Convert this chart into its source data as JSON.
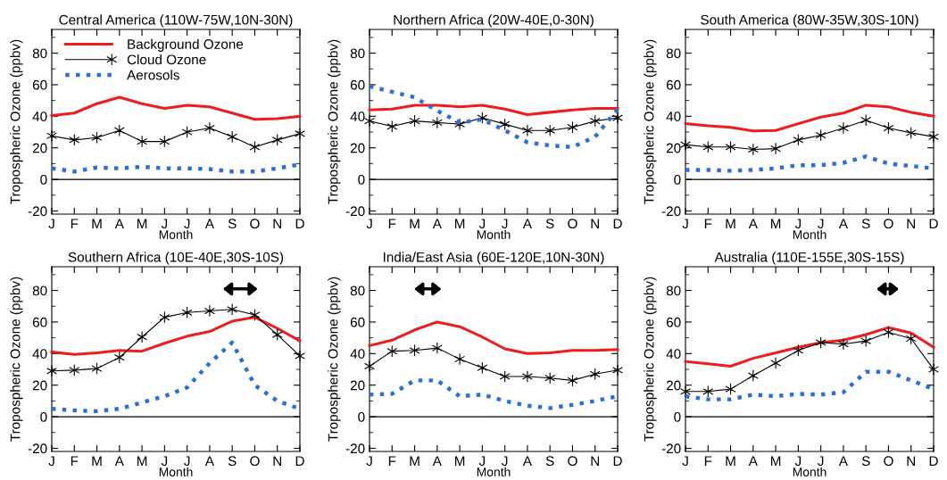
{
  "chart_data": [
    {
      "type": "line",
      "title": "Central America (110W-75W,10N-30N)",
      "xlabel": "Month",
      "ylabel": "Tropospheric Ozone (ppbv)",
      "categories": [
        "J",
        "F",
        "M",
        "A",
        "M",
        "J",
        "J",
        "A",
        "S",
        "O",
        "N",
        "D"
      ],
      "ylim": [
        -22,
        95
      ],
      "yticks": [
        -20,
        0,
        20,
        40,
        60,
        80
      ],
      "legend": "top left",
      "ref_lines": [
        {
          "axis": "y",
          "value": 0,
          "color": "#000000"
        }
      ],
      "series": [
        {
          "name": "Background Ozone",
          "color": "#ee1c1c",
          "line_style": "solid",
          "marker": "none",
          "values": [
            40.4,
            42,
            48,
            52,
            48,
            45,
            47,
            46,
            42,
            38,
            38.5,
            40
          ]
        },
        {
          "name": "Cloud Ozone",
          "color": "#000000",
          "line_style": "solid",
          "marker": "cross",
          "values": [
            27.6,
            25,
            26.5,
            31,
            24,
            24,
            30,
            32.5,
            27,
            20.5,
            25,
            29
          ]
        },
        {
          "name": "Aerosols",
          "color": "#2a6fdb",
          "line_style": "dotted",
          "marker": "none",
          "values": [
            7,
            5,
            7.5,
            7,
            8,
            7,
            7,
            6.5,
            5,
            5,
            7,
            9.5
          ]
        }
      ]
    },
    {
      "type": "line",
      "title": "Northern Africa (20W-40E,0-30N)",
      "xlabel": "Month",
      "ylabel": "Tropospheric Ozone (ppbv)",
      "categories": [
        "J",
        "F",
        "M",
        "A",
        "M",
        "J",
        "J",
        "A",
        "S",
        "O",
        "N",
        "D"
      ],
      "ylim": [
        -22,
        95
      ],
      "yticks": [
        -20,
        0,
        20,
        40,
        60,
        80
      ],
      "ref_lines": [
        {
          "axis": "y",
          "value": 0,
          "color": "#000000"
        }
      ],
      "series": [
        {
          "color": "#ee1c1c",
          "line_style": "solid",
          "marker": "none",
          "values": [
            44,
            44.5,
            47,
            47,
            46,
            47,
            44.5,
            41,
            42.5,
            44,
            45,
            45
          ]
        },
        {
          "color": "#000000",
          "line_style": "solid",
          "marker": "cross",
          "values": [
            37,
            33.5,
            37,
            36,
            35,
            39,
            35,
            31,
            31,
            33,
            37,
            39
          ]
        },
        {
          "color": "#2a6fdb",
          "line_style": "dotted",
          "marker": "none",
          "values": [
            59,
            55.5,
            52,
            43.5,
            36,
            38,
            31,
            23.5,
            21.5,
            20.5,
            27,
            44.5
          ]
        }
      ]
    },
    {
      "type": "line",
      "title": "South America (80W-35W,30S-10N)",
      "xlabel": "Month",
      "ylabel": "Tropospheric Ozone (ppbv)",
      "categories": [
        "J",
        "F",
        "M",
        "A",
        "M",
        "J",
        "J",
        "A",
        "S",
        "O",
        "N",
        "D"
      ],
      "ylim": [
        -22,
        95
      ],
      "yticks": [
        -20,
        0,
        20,
        40,
        60,
        80
      ],
      "ref_lines": [
        {
          "axis": "y",
          "value": 0,
          "color": "#000000"
        }
      ],
      "series": [
        {
          "color": "#ee1c1c",
          "line_style": "solid",
          "marker": "none",
          "values": [
            35.3,
            34,
            33,
            30.7,
            31,
            35.3,
            39.5,
            42,
            47,
            46,
            42.5,
            40
          ]
        },
        {
          "color": "#000000",
          "line_style": "solid",
          "marker": "cross",
          "values": [
            22,
            20.5,
            20.5,
            19,
            19.5,
            25,
            28,
            32.5,
            37.5,
            32.5,
            29.5,
            27
          ]
        },
        {
          "color": "#2a6fdb",
          "line_style": "dotted",
          "marker": "none",
          "values": [
            6,
            6,
            5.5,
            6,
            7,
            9,
            9,
            10.5,
            14.5,
            10,
            8.5,
            7
          ]
        }
      ]
    },
    {
      "type": "line",
      "title": "Southern Africa (10E-40E,30S-10S)",
      "xlabel": "Month",
      "ylabel": "Tropospheric Ozone (ppbv)",
      "categories": [
        "J",
        "F",
        "M",
        "A",
        "M",
        "J",
        "J",
        "A",
        "S",
        "O",
        "N",
        "D"
      ],
      "ylim": [
        -22,
        95
      ],
      "yticks": [
        -20,
        0,
        20,
        40,
        60,
        80
      ],
      "ref_lines": [
        {
          "axis": "y",
          "value": 0,
          "color": "#000000"
        }
      ],
      "series": [
        {
          "color": "#ee1c1c",
          "line_style": "solid",
          "marker": "none",
          "values": [
            41,
            39.5,
            40.5,
            42,
            41.5,
            46.5,
            51,
            54,
            60.5,
            63,
            56,
            48
          ]
        },
        {
          "color": "#000000",
          "line_style": "solid",
          "marker": "cross",
          "values": [
            29,
            29.5,
            30.5,
            37.5,
            50.5,
            63,
            66,
            67,
            68,
            64.5,
            52,
            38.5
          ]
        },
        {
          "color": "#2a6fdb",
          "line_style": "dotted",
          "marker": "none",
          "values": [
            5,
            4,
            3.5,
            5,
            9,
            13,
            18.5,
            34,
            47,
            20,
            10,
            5
          ]
        }
      ]
    },
    {
      "type": "line",
      "title": "India/East Asia (60E-120E,10N-30N)",
      "xlabel": "Month",
      "ylabel": "Tropospheric Ozone (ppbv)",
      "categories": [
        "J",
        "F",
        "M",
        "A",
        "M",
        "J",
        "J",
        "A",
        "S",
        "O",
        "N",
        "D"
      ],
      "ylim": [
        -22,
        95
      ],
      "yticks": [
        -20,
        0,
        20,
        40,
        60,
        80
      ],
      "ref_lines": [
        {
          "axis": "y",
          "value": 0,
          "color": "#000000"
        }
      ],
      "series": [
        {
          "color": "#ee1c1c",
          "line_style": "solid",
          "marker": "none",
          "values": [
            45,
            48.5,
            55,
            60,
            57,
            50.5,
            43,
            40,
            40.5,
            42,
            42,
            42.5
          ]
        },
        {
          "color": "#000000",
          "line_style": "solid",
          "marker": "cross",
          "values": [
            32,
            41.5,
            42,
            43.5,
            36.5,
            31,
            25.5,
            25.5,
            24.5,
            23,
            27,
            29.5
          ]
        },
        {
          "color": "#2a6fdb",
          "line_style": "dotted",
          "marker": "none",
          "values": [
            14,
            14.5,
            23,
            23,
            13,
            14,
            10,
            7,
            5.5,
            7.5,
            10,
            13
          ]
        }
      ]
    },
    {
      "type": "line",
      "title": "Australia (110E-155E,30S-15S)",
      "xlabel": "Month",
      "ylabel": "Tropospheric Ozone (ppbv)",
      "categories": [
        "J",
        "F",
        "M",
        "A",
        "M",
        "J",
        "J",
        "A",
        "S",
        "O",
        "N",
        "D"
      ],
      "ylim": [
        -22,
        95
      ],
      "yticks": [
        -20,
        0,
        20,
        40,
        60,
        80
      ],
      "ref_lines": [
        {
          "axis": "y",
          "value": 0,
          "color": "#000000"
        }
      ],
      "series": [
        {
          "color": "#ee1c1c",
          "line_style": "solid",
          "marker": "none",
          "values": [
            35,
            33.5,
            32,
            37,
            40.5,
            44,
            47,
            48.5,
            52,
            56.5,
            53,
            44
          ]
        },
        {
          "color": "#000000",
          "line_style": "solid",
          "marker": "cross",
          "values": [
            16,
            16,
            17.5,
            26,
            34,
            42,
            47,
            46,
            48,
            53.5,
            49.5,
            30
          ]
        },
        {
          "color": "#2a6fdb",
          "line_style": "dotted",
          "marker": "none",
          "values": [
            13,
            11,
            11,
            14,
            13,
            14.5,
            14,
            15.5,
            28.5,
            28.5,
            23,
            17.5
          ]
        }
      ]
    }
  ]
}
